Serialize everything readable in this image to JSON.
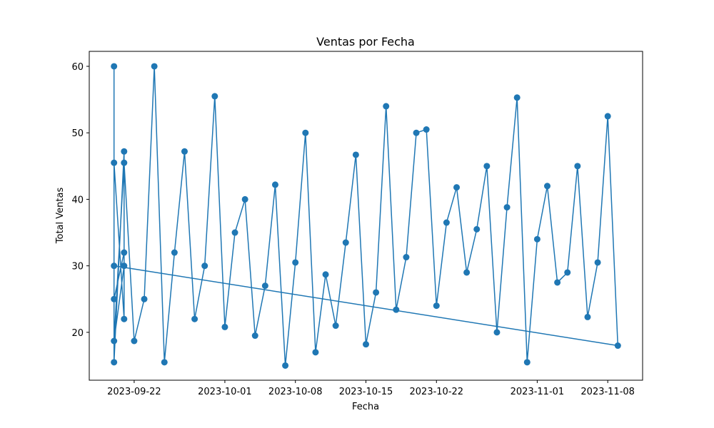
{
  "chart_data": {
    "type": "line",
    "title": "Ventas por Fecha",
    "x_label": "Fecha",
    "y_label": "Total Ventas",
    "x": [
      "2023-09-20",
      "2023-09-20",
      "2023-09-21",
      "2023-09-21",
      "2023-09-20",
      "2023-09-20",
      "2023-09-21",
      "2023-09-21",
      "2023-09-20",
      "2023-09-21",
      "2023-09-22",
      "2023-09-23",
      "2023-09-24",
      "2023-09-25",
      "2023-09-26",
      "2023-09-27",
      "2023-09-28",
      "2023-09-29",
      "2023-09-30",
      "2023-10-01",
      "2023-10-02",
      "2023-10-03",
      "2023-10-04",
      "2023-10-05",
      "2023-10-06",
      "2023-10-07",
      "2023-10-08",
      "2023-10-09",
      "2023-10-10",
      "2023-10-11",
      "2023-10-12",
      "2023-10-13",
      "2023-10-14",
      "2023-10-15",
      "2023-10-16",
      "2023-10-17",
      "2023-10-18",
      "2023-10-19",
      "2023-10-20",
      "2023-10-21",
      "2023-10-22",
      "2023-10-23",
      "2023-10-24",
      "2023-10-25",
      "2023-10-26",
      "2023-10-27",
      "2023-10-28",
      "2023-10-29",
      "2023-10-30",
      "2023-10-31",
      "2023-11-01",
      "2023-11-02",
      "2023-11-03",
      "2023-11-04",
      "2023-11-05",
      "2023-11-06",
      "2023-11-07",
      "2023-11-08",
      "2023-11-09",
      "2023-09-20"
    ],
    "series": [
      {
        "name": "Total Ventas",
        "color": "#1f77b4",
        "values": [
          60,
          15.5,
          47.2,
          22,
          45.5,
          25,
          32,
          30,
          18.7,
          45.5,
          18.7,
          25,
          60,
          15.5,
          32,
          47.2,
          22,
          30,
          55.5,
          20.8,
          35,
          40,
          19.5,
          27,
          42.2,
          15,
          30.5,
          50,
          17,
          28.7,
          21,
          33.5,
          46.7,
          18.2,
          26,
          54,
          23.4,
          31.3,
          50,
          50.5,
          24,
          36.5,
          41.8,
          29,
          35.5,
          45,
          20,
          38.8,
          55.3,
          15.5,
          34,
          42,
          27.5,
          29,
          45,
          22.3,
          30.5,
          52.5,
          18,
          30
        ]
      }
    ],
    "xlim": [
      "2023-09-17T13:00:00Z",
      "2023-11-11T11:00:00Z"
    ],
    "ylim": [
      12.8,
      62.25
    ],
    "xticks": [
      "2023-09-22",
      "2023-10-01",
      "2023-10-08",
      "2023-10-15",
      "2023-10-22",
      "2023-11-01",
      "2023-11-08"
    ],
    "yticks": [
      20,
      30,
      40,
      50,
      60
    ],
    "grid": false
  }
}
